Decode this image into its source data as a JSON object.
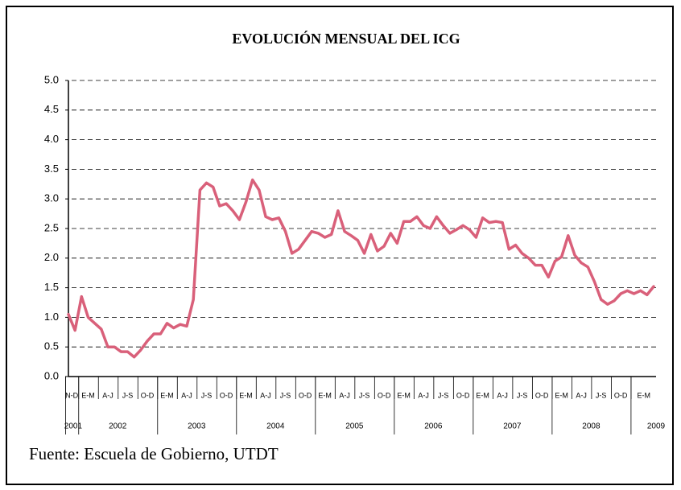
{
  "chart_data": {
    "type": "line",
    "title": "EVOLUCIÓN MENSUAL DEL ICG",
    "source": "Fuente: Escuela de Gobierno, UTDT",
    "color": "#d9607a",
    "grid": true,
    "ylim": [
      0,
      5
    ],
    "yticks": [
      {
        "value": 0,
        "label": "0.0"
      },
      {
        "value": 0.5,
        "label": "0.5"
      },
      {
        "value": 1,
        "label": "1.0"
      },
      {
        "value": 1.5,
        "label": "1.5"
      },
      {
        "value": 2,
        "label": "2.0"
      },
      {
        "value": 2.5,
        "label": "2.5"
      },
      {
        "value": 3,
        "label": "3.0"
      },
      {
        "value": 3.5,
        "label": "3.5"
      },
      {
        "value": 4,
        "label": "4.0"
      },
      {
        "value": 4.5,
        "label": "4.5"
      },
      {
        "value": 5,
        "label": "5.0"
      }
    ],
    "quarter_labels": [
      "N-D",
      "E-M",
      "A-J",
      "J-S",
      "O-D",
      "E-M",
      "A-J",
      "J-S",
      "O-D",
      "E-M",
      "A-J",
      "J-S",
      "O-D",
      "E-M",
      "A-J",
      "J-S",
      "O-D",
      "E-M",
      "A-J",
      "J-S",
      "O-D",
      "E-M",
      "A-J",
      "J-S",
      "O-D",
      "E-M",
      "A-J",
      "J-S",
      "O-D",
      "E-M"
    ],
    "year_labels": [
      "2001",
      "2002",
      "2003",
      "2004",
      "2005",
      "2006",
      "2007",
      "2008",
      "2009"
    ],
    "values": [
      1.05,
      0.78,
      1.35,
      1.0,
      0.9,
      0.8,
      0.5,
      0.5,
      0.42,
      0.42,
      0.33,
      0.45,
      0.6,
      0.72,
      0.72,
      0.9,
      0.82,
      0.88,
      0.85,
      1.3,
      3.15,
      3.27,
      3.2,
      2.88,
      2.92,
      2.8,
      2.65,
      2.95,
      3.32,
      3.15,
      2.7,
      2.65,
      2.68,
      2.45,
      2.08,
      2.15,
      2.3,
      2.45,
      2.42,
      2.35,
      2.4,
      2.8,
      2.45,
      2.38,
      2.3,
      2.08,
      2.4,
      2.12,
      2.2,
      2.42,
      2.25,
      2.62,
      2.62,
      2.7,
      2.55,
      2.5,
      2.7,
      2.55,
      2.42,
      2.48,
      2.55,
      2.48,
      2.35,
      2.68,
      2.6,
      2.62,
      2.6,
      2.15,
      2.22,
      2.08,
      2.0,
      1.88,
      1.88,
      1.68,
      1.95,
      2.02,
      2.38,
      2.05,
      1.92,
      1.85,
      1.6,
      1.3,
      1.22,
      1.28,
      1.4,
      1.45,
      1.4,
      1.45,
      1.38,
      1.52
    ]
  }
}
